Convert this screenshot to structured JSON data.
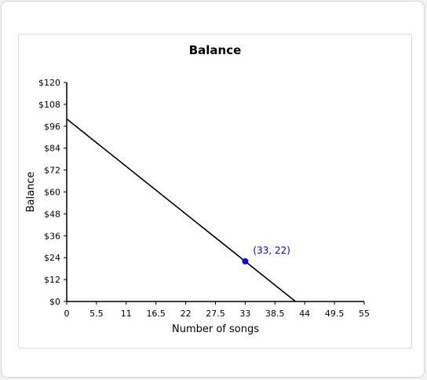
{
  "chart_data": {
    "type": "line",
    "title": "Balance",
    "xlabel": "Number of songs",
    "ylabel": "Balance",
    "xlim": [
      0,
      55
    ],
    "ylim": [
      0,
      120
    ],
    "x_ticks": [
      0,
      5.5,
      11,
      16.5,
      22,
      27.5,
      33,
      38.5,
      44,
      49.5,
      55
    ],
    "x_tick_labels": [
      "0",
      "5.5",
      "11",
      "16.5",
      "22",
      "27.5",
      "33",
      "38.5",
      "44",
      "49.5",
      "55"
    ],
    "y_ticks": [
      0,
      12,
      24,
      36,
      48,
      60,
      72,
      84,
      96,
      108,
      120
    ],
    "y_tick_labels": [
      "$0",
      "$12",
      "$24",
      "$36",
      "$48",
      "$60",
      "$72",
      "$84",
      "$96",
      "$108",
      "$120"
    ],
    "grid": false,
    "series": [
      {
        "x": [
          0,
          42.3
        ],
        "y": [
          100,
          0
        ],
        "color": "#000000"
      }
    ],
    "highlight_point": {
      "x": 33,
      "y": 22,
      "label": "(33, 22)",
      "color": "#0000ff"
    }
  }
}
